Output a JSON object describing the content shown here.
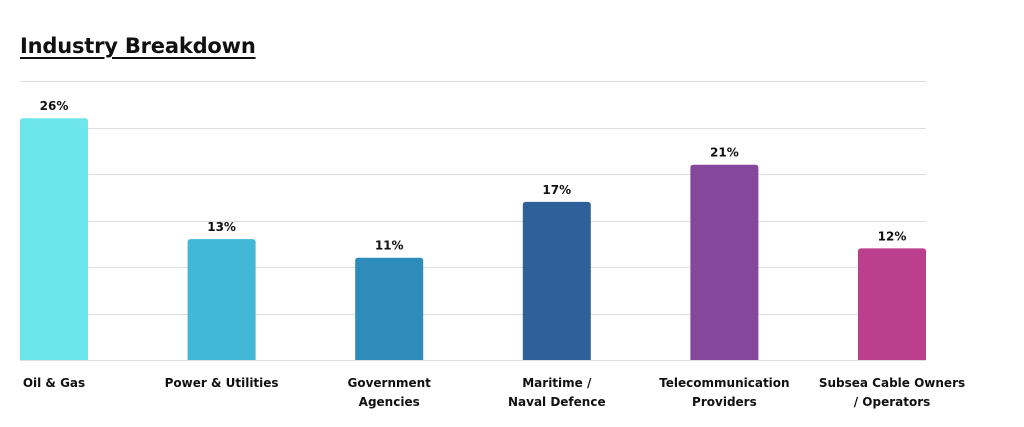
{
  "chart_data": {
    "type": "bar",
    "title": "Industry Breakdown",
    "categories": [
      [
        "Oil & Gas"
      ],
      [
        "Power & Utilities"
      ],
      [
        "Government",
        "Agencies"
      ],
      [
        "Maritime /",
        "Naval Defence"
      ],
      [
        "Telecommunication",
        "Providers"
      ],
      [
        "Subsea Cable Owners",
        "/ Operators"
      ]
    ],
    "values": [
      26,
      13,
      11,
      17,
      21,
      12
    ],
    "data_labels": [
      "26%",
      "13%",
      "11%",
      "17%",
      "21%",
      "12%"
    ],
    "colors": [
      "#6ce6ea",
      "#42b8d6",
      "#2d8cba",
      "#2e6199",
      "#85479b",
      "#bb3f8d"
    ],
    "gridline_color": "#dddddd",
    "ylim": [
      0,
      30
    ],
    "grid": true
  }
}
